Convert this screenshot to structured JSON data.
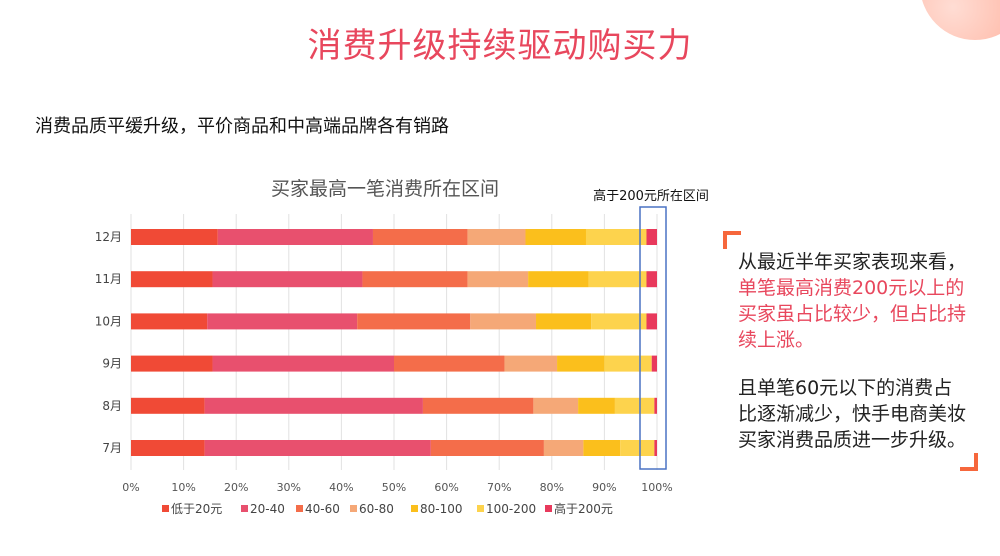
{
  "page": {
    "title": "消费升级持续驱动购买力",
    "subtitle": "消费品质平缓升级，平价商品和中高端品牌各有销路"
  },
  "callout": {
    "para1_plain": "从最近半年买家表现来看，",
    "para1_highlight": "单笔最高消费200元以上的买家虽占比较少，但占比持续上涨。",
    "para2": "且单笔60元以下的消费占比逐渐减少，快手电商美妆买家消费品质进一步升级。"
  },
  "chart_data": {
    "type": "bar",
    "orientation": "horizontal",
    "stacked": "percent",
    "title": "买家最高一笔消费所在区间",
    "annotation": "高于200元所在区间",
    "categories": [
      "12月",
      "11月",
      "10月",
      "9月",
      "8月",
      "7月"
    ],
    "series": [
      {
        "name": "低于20元",
        "color": "#f04a36",
        "values": [
          16.5,
          15.5,
          14.5,
          15.5,
          14.0,
          14.0
        ]
      },
      {
        "name": "20-40",
        "color": "#e8506e",
        "values": [
          29.5,
          28.5,
          28.5,
          34.5,
          41.5,
          43.0
        ]
      },
      {
        "name": "40-60",
        "color": "#f46d4a",
        "values": [
          18.0,
          20.0,
          21.5,
          21.0,
          21.0,
          21.5
        ]
      },
      {
        "name": "60-80",
        "color": "#f5a877",
        "values": [
          11.0,
          11.5,
          12.5,
          10.0,
          8.5,
          7.5
        ]
      },
      {
        "name": "80-100",
        "color": "#fbbf1c",
        "values": [
          11.5,
          11.5,
          10.5,
          9.0,
          7.0,
          7.0
        ]
      },
      {
        "name": "100-200",
        "color": "#fdd34d",
        "values": [
          11.5,
          11.0,
          10.5,
          9.0,
          7.5,
          6.5
        ]
      },
      {
        "name": "高于200元",
        "color": "#e8395c",
        "values": [
          2.0,
          2.0,
          2.0,
          1.0,
          0.5,
          0.5
        ]
      }
    ],
    "x_ticks": [
      "0%",
      "10%",
      "20%",
      "30%",
      "40%",
      "50%",
      "60%",
      "70%",
      "80%",
      "90%",
      "100%"
    ],
    "xlim": [
      0,
      100
    ],
    "grid": true,
    "legend_position": "bottom"
  }
}
